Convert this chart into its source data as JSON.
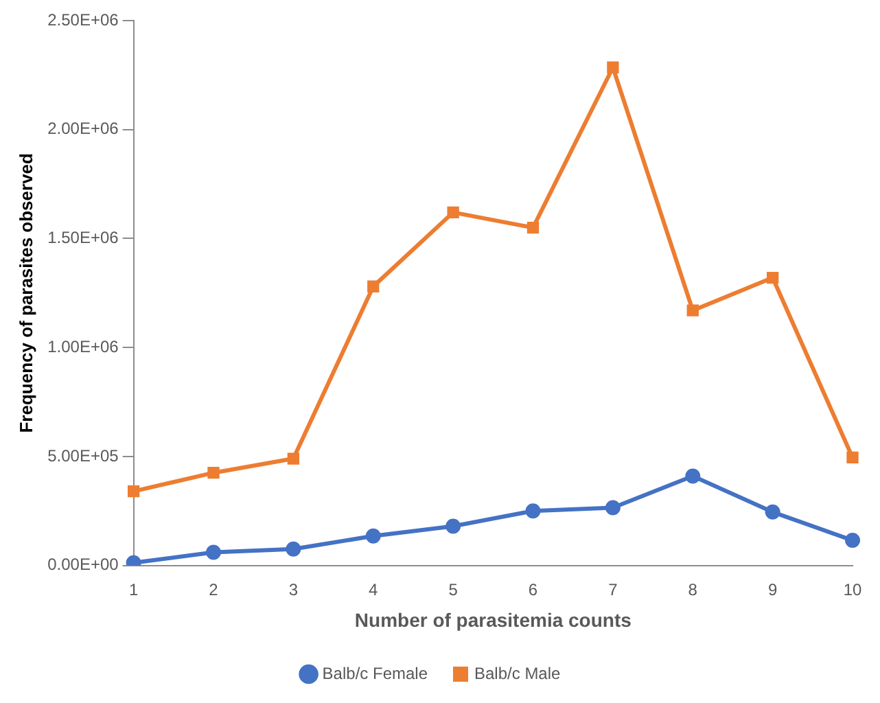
{
  "chart_data": {
    "type": "line",
    "xlabel": "Number of parasitemia counts",
    "ylabel": "Frequency of parasites observed",
    "categories": [
      "1",
      "2",
      "3",
      "4",
      "5",
      "6",
      "7",
      "8",
      "9",
      "10"
    ],
    "series": [
      {
        "name": "Balb/c Female",
        "color": "#4472c4",
        "marker": "circle",
        "values": [
          12000,
          60000,
          75000,
          135000,
          180000,
          250000,
          265000,
          410000,
          245000,
          115000
        ]
      },
      {
        "name": "Balb/c Male",
        "color": "#ed7d31",
        "marker": "square",
        "values": [
          340000,
          425000,
          490000,
          1280000,
          1620000,
          1550000,
          2285000,
          1170000,
          1320000,
          495000
        ]
      }
    ],
    "ylim": [
      0,
      2500000
    ],
    "yticks": [
      {
        "value": 0,
        "label": "0.00E+00"
      },
      {
        "value": 500000,
        "label": "5.00E+05"
      },
      {
        "value": 1000000,
        "label": "1.00E+06"
      },
      {
        "value": 1500000,
        "label": "1.50E+06"
      },
      {
        "value": 2000000,
        "label": "2.00E+06"
      },
      {
        "value": 2500000,
        "label": "2.50E+06"
      }
    ],
    "grid": false,
    "legend": "bottom",
    "line_style": "solid"
  }
}
